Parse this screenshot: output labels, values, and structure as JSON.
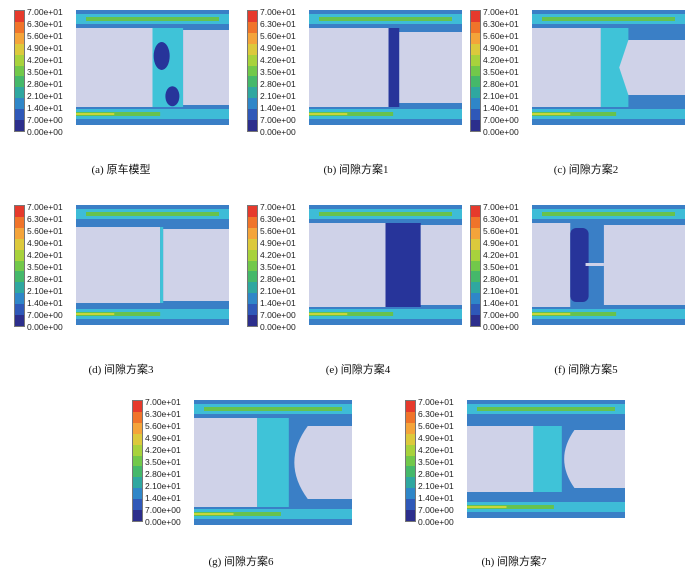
{
  "legend": {
    "ticks": [
      "7.00e+01",
      "6.30e+01",
      "5.60e+01",
      "4.90e+01",
      "4.20e+01",
      "3.50e+01",
      "2.80e+01",
      "2.10e+01",
      "1.40e+01",
      "7.00e+00",
      "0.00e+00"
    ],
    "colors": [
      "#e63a2c",
      "#f0742a",
      "#f4a43a",
      "#dcc93c",
      "#a8d23c",
      "#72c84a",
      "#45b86a",
      "#2fa7a0",
      "#2f86c8",
      "#2f58b8",
      "#2c2e8c"
    ]
  },
  "flow_colors": {
    "bg": "#3a7fc6",
    "cyan": "#3fc3d8",
    "green": "#67c24d",
    "yellow": "#c9d63b",
    "darkblue": "#27349a",
    "body": "#cfd2e8"
  },
  "panels": [
    {
      "id": "a",
      "caption": "(a) 原车模型",
      "variant": "original"
    },
    {
      "id": "b",
      "caption": "(b) 间隙方案1",
      "variant": "plan1"
    },
    {
      "id": "c",
      "caption": "(c) 间隙方案2",
      "variant": "plan2"
    },
    {
      "id": "d",
      "caption": "(d) 间隙方案3",
      "variant": "plan3"
    },
    {
      "id": "e",
      "caption": "(e) 间隙方案4",
      "variant": "plan4"
    },
    {
      "id": "f",
      "caption": "(f) 间隙方案5",
      "variant": "plan5"
    },
    {
      "id": "g",
      "caption": "(g) 间隙方案6",
      "variant": "plan6"
    },
    {
      "id": "h",
      "caption": "(h) 间隙方案7",
      "variant": "plan7"
    }
  ]
}
